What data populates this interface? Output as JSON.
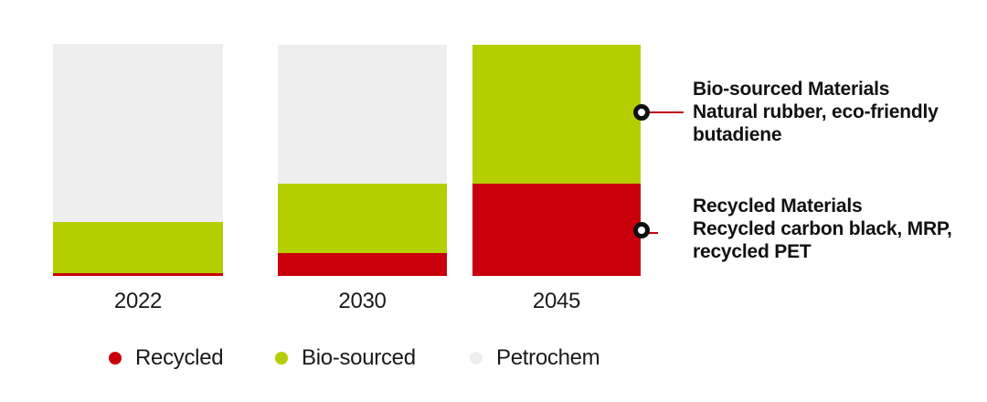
{
  "chart_data": {
    "type": "bar",
    "stacked": true,
    "title": "",
    "xlabel": "",
    "ylabel": "",
    "ylim": [
      0,
      100
    ],
    "grid": false,
    "axes_visible": false,
    "legend_position": "bottom",
    "categories": [
      "2022",
      "2030",
      "2045"
    ],
    "series": [
      {
        "name": "Recycled",
        "color": "#c9000c",
        "values": [
          1,
          10,
          40
        ]
      },
      {
        "name": "Bio-sourced",
        "color": "#b5ce00",
        "values": [
          22,
          30,
          60
        ]
      },
      {
        "name": "Petrochem",
        "color": "#eeeeee",
        "values": [
          77,
          60,
          0
        ]
      }
    ]
  },
  "annotations": [
    {
      "title": "Bio-sourced Materials",
      "description": "Natural rubber, eco-friendly butadiene",
      "target": "2045 bio-sourced segment",
      "marker": "circle-outline",
      "marker_color": "#111111",
      "leader_color": "#bf0411"
    },
    {
      "title": "Recycled Materials",
      "description": "Recycled carbon black, MRP, recycled PET",
      "target": "2045 recycled segment",
      "marker": "circle-outline",
      "marker_color": "#111111",
      "leader_color": "#bf0411"
    }
  ],
  "colors": {
    "background": "#ffffff",
    "label_text": "#1a1a1a",
    "annotation_text": "#111111"
  }
}
